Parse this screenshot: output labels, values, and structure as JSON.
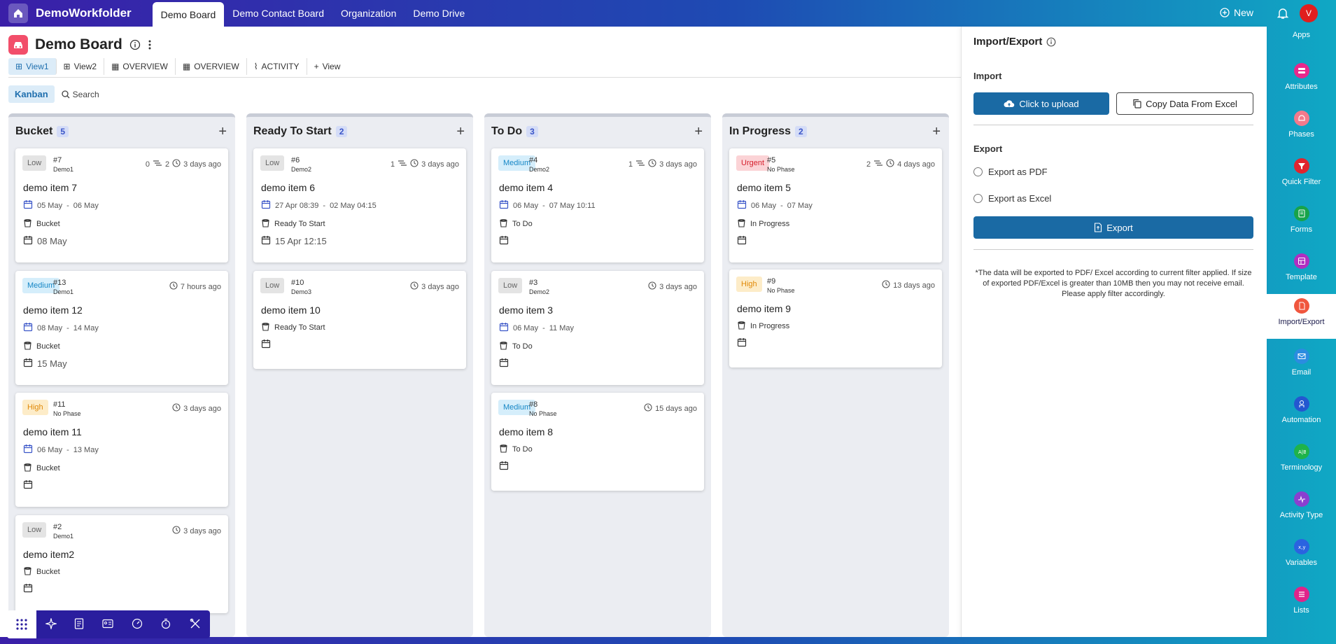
{
  "app": {
    "name": "DemoWorkfolder"
  },
  "topnav": {
    "tabs": [
      "Demo Board",
      "Demo Contact Board",
      "Organization",
      "Demo Drive"
    ],
    "new_label": "New",
    "avatar_initial": "V"
  },
  "board": {
    "title": "Demo Board",
    "views": [
      "View1",
      "View2",
      "OVERVIEW",
      "OVERVIEW",
      "ACTIVITY",
      "View"
    ],
    "kanban_label": "Kanban",
    "search_label": "Search"
  },
  "columns": [
    {
      "title": "Bucket",
      "count": "5",
      "cards": [
        {
          "priority": "Low",
          "num": "#7",
          "project": "Demo1",
          "counts": "0",
          "counts2": "2",
          "time": "3 days ago",
          "title": "demo item 7",
          "start": "05 May",
          "end": "06 May",
          "phase": "Bucket",
          "due": "08 May"
        },
        {
          "priority": "Medium",
          "num": "#13",
          "project": "Demo1",
          "time": "7 hours ago",
          "title": "demo item 12",
          "start": "08 May",
          "end": "14 May",
          "phase": "Bucket",
          "due": "15 May"
        },
        {
          "priority": "High",
          "num": "#11",
          "project": "No Phase",
          "time": "3 days ago",
          "title": "demo item 11",
          "start": "06 May",
          "end": "13 May",
          "phase": "Bucket",
          "due": ""
        },
        {
          "priority": "Low",
          "num": "#2",
          "project": "Demo1",
          "time": "3 days ago",
          "title": "demo item2",
          "start": "",
          "end": "",
          "phase": "Bucket",
          "due": ""
        }
      ]
    },
    {
      "title": "Ready To Start",
      "count": "2",
      "cards": [
        {
          "priority": "Low",
          "num": "#6",
          "project": "Demo2",
          "counts": "1",
          "time": "3 days ago",
          "title": "demo item 6",
          "start": "27 Apr 08:39",
          "end": "02 May 04:15",
          "phase": "Ready To Start",
          "due": "15 Apr 12:15"
        },
        {
          "priority": "Low",
          "num": "#10",
          "project": "Demo3",
          "time": "3 days ago",
          "title": "demo item 10",
          "start": "",
          "end": "",
          "phase": "Ready To Start",
          "due": ""
        }
      ]
    },
    {
      "title": "To Do",
      "count": "3",
      "cards": [
        {
          "priority": "Medium",
          "num": "#4",
          "project": "Demo2",
          "counts": "1",
          "time": "3 days ago",
          "title": "demo item 4",
          "start": "06 May",
          "end": "07 May 10:11",
          "phase": "To Do",
          "due": ""
        },
        {
          "priority": "Low",
          "num": "#3",
          "project": "Demo2",
          "time": "3 days ago",
          "title": "demo item 3",
          "start": "06 May",
          "end": "11 May",
          "phase": "To Do",
          "due": ""
        },
        {
          "priority": "Medium",
          "num": "#8",
          "project": "No Phase",
          "time": "15 days ago",
          "title": "demo item 8",
          "start": "",
          "end": "",
          "phase": "To Do",
          "due": ""
        }
      ]
    },
    {
      "title": "In Progress",
      "count": "2",
      "cards": [
        {
          "priority": "Urgent",
          "num": "#5",
          "project": "No Phase",
          "counts": "2",
          "time": "4 days ago",
          "title": "demo item 5",
          "start": "06 May",
          "end": "07 May",
          "phase": "In Progress",
          "due": ""
        },
        {
          "priority": "High",
          "num": "#9",
          "project": "No Phase",
          "time": "13 days ago",
          "title": "demo item 9",
          "start": "",
          "end": "",
          "phase": "In Progress",
          "due": ""
        }
      ]
    }
  ],
  "panel": {
    "title": "Import/Export",
    "import_label": "Import",
    "upload_label": "Click to upload",
    "copy_label": "Copy Data From Excel",
    "export_label": "Export",
    "pdf_label": "Export as PDF",
    "excel_label": "Export as Excel",
    "export_button": "Export",
    "note": "*The data will be exported to PDF/ Excel according to current filter applied. If size of exported PDF/Excel is greater than 10MB then you may not receive email. Please apply filter accordingly."
  },
  "rail": [
    {
      "label": "Apps",
      "color": "#ffffff"
    },
    {
      "label": "Attributes",
      "color": "#e8288c"
    },
    {
      "label": "Phases",
      "color": "#f37a8c"
    },
    {
      "label": "Quick Filter",
      "color": "#e0242e"
    },
    {
      "label": "Forms",
      "color": "#17a34a"
    },
    {
      "label": "Template",
      "color": "#b12fc2"
    },
    {
      "label": "Import/Export",
      "color": "#f0563e"
    },
    {
      "label": "Email",
      "color": "#2b8ce0"
    },
    {
      "label": "Automation",
      "color": "#2457d0"
    },
    {
      "label": "Terminology",
      "color": "#1fb34a"
    },
    {
      "label": "Activity Type",
      "color": "#8a3fd0"
    },
    {
      "label": "Variables",
      "color": "#2a63e0"
    },
    {
      "label": "Lists",
      "color": "#e0248a"
    }
  ]
}
